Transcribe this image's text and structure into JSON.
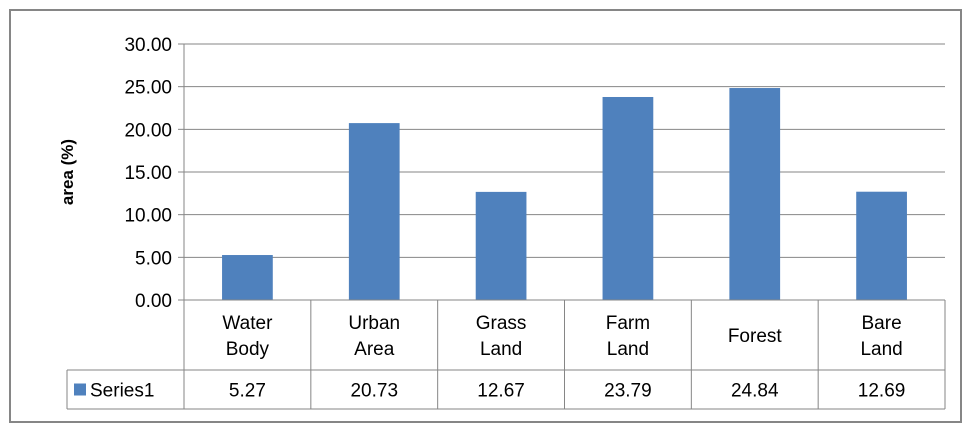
{
  "chart_data": {
    "type": "bar",
    "categories": [
      [
        "Water",
        "Body"
      ],
      [
        "Urban",
        "Area"
      ],
      [
        "Grass",
        "Land"
      ],
      [
        "Farm",
        "Land"
      ],
      [
        "Forest"
      ],
      [
        "Bare",
        "Land"
      ]
    ],
    "series": [
      {
        "name": "Series1",
        "values": [
          5.27,
          20.73,
          12.67,
          23.79,
          24.84,
          12.69
        ]
      }
    ],
    "value_labels": [
      "5.27",
      "20.73",
      "12.67",
      "23.79",
      "24.84",
      "12.69"
    ],
    "ylabel": "area (%)",
    "ylim": [
      0,
      30
    ],
    "yticks": [
      "0.00",
      "5.00",
      "10.00",
      "15.00",
      "20.00",
      "25.00",
      "30.00"
    ],
    "grid": true,
    "legend": "bottom-left data table",
    "colors": {
      "bar": "#4F81BD",
      "grid": "#868686",
      "axis": "#868686"
    }
  }
}
